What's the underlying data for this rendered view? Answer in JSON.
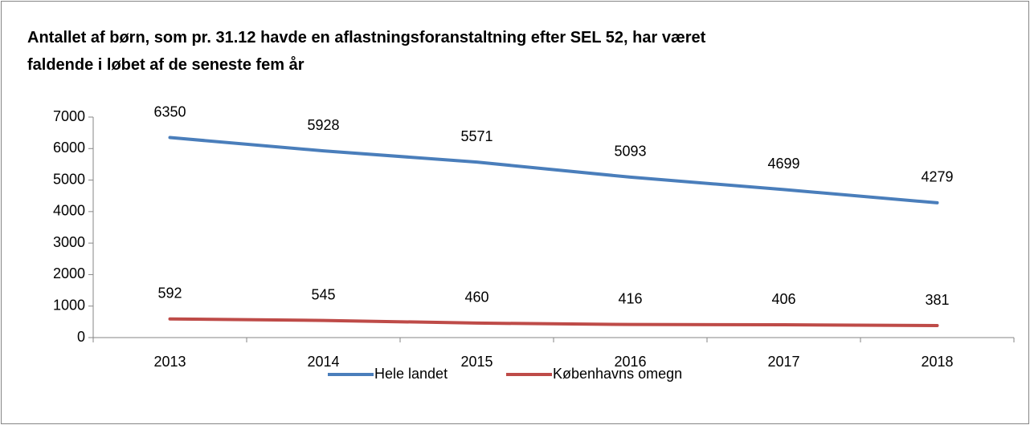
{
  "chart_data": {
    "type": "line",
    "title": "Antallet af børn, som pr. 31.12 havde en aflastningsforanstaltning efter SEL 52, har været faldende i løbet af de seneste fem år",
    "categories": [
      "2013",
      "2014",
      "2015",
      "2016",
      "2017",
      "2018"
    ],
    "series": [
      {
        "name": "Hele landet",
        "color": "#4a7ebb",
        "values": [
          6350,
          5928,
          5571,
          5093,
          4699,
          4279
        ]
      },
      {
        "name": "Københavns omegn",
        "color": "#be4b48",
        "values": [
          592,
          545,
          460,
          416,
          406,
          381
        ]
      }
    ],
    "ylim": [
      0,
      7000
    ],
    "yticks": [
      0,
      1000,
      2000,
      3000,
      4000,
      5000,
      6000,
      7000
    ],
    "legend": "bottom"
  }
}
